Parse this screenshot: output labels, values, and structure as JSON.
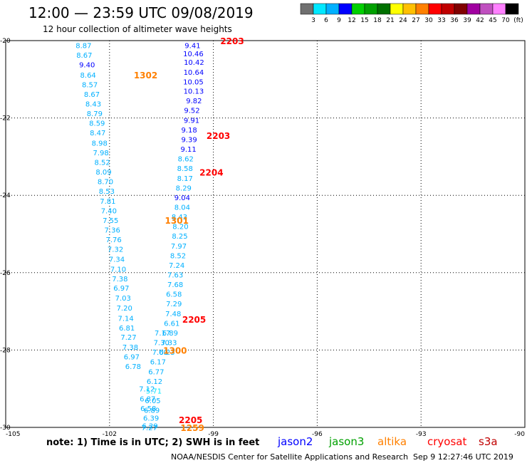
{
  "header": {
    "title": "12:00 — 23:59 UTC 09/08/2019",
    "subtitle": "12 hour collection of altimeter wave heights"
  },
  "colorbar": {
    "unit": "(ft)",
    "labels": [
      "3",
      "6",
      "9",
      "12",
      "15",
      "18",
      "21",
      "24",
      "27",
      "30",
      "33",
      "36",
      "39",
      "42",
      "45",
      "70"
    ],
    "colors": [
      "#707070",
      "#00e8ff",
      "#00b0ff",
      "#0000ff",
      "#00d000",
      "#00a000",
      "#007000",
      "#ffff00",
      "#ffc000",
      "#ff8000",
      "#ff0000",
      "#c00000",
      "#800000",
      "#a000a0",
      "#c050c0",
      "#ff80ff",
      "#000000"
    ]
  },
  "footer": {
    "note": "note: 1) Time is in UTC; 2) SWH is in feet",
    "legend": [
      {
        "label": "jason2",
        "color": "#0000ff"
      },
      {
        "label": "jason3",
        "color": "#00a000"
      },
      {
        "label": "altika",
        "color": "#ff8000"
      },
      {
        "label": "cryosat",
        "color": "#ff0000"
      },
      {
        "label": "s3a",
        "color": "#c00000"
      }
    ],
    "credit": "NOAA/NESDIS Center for Satellite Applications and Research",
    "timestamp": "Sep  9 12:27:46 UTC 2019"
  },
  "chart_data": {
    "type": "scatter",
    "xlim": [
      -105,
      -90
    ],
    "ylim": [
      -30,
      -20
    ],
    "x_ticks": [
      "-105",
      "-102",
      "-99",
      "-96",
      "-93",
      "-90"
    ],
    "y_ticks": [
      "-20",
      "-22",
      "-24",
      "-26",
      "-28",
      "-30"
    ],
    "grid": true,
    "tracks": [
      {
        "x": [
          -102.75,
          -102.73,
          -102.65,
          -102.62,
          -102.57,
          -102.51,
          -102.47,
          -102.43,
          -102.36,
          -102.34,
          -102.29,
          -102.25,
          -102.21,
          -102.17,
          -102.12,
          -102.08,
          -102.05,
          -102.02,
          -101.97,
          -101.92,
          -101.88,
          -101.83,
          -101.79,
          -101.75,
          -101.7,
          -101.66,
          -101.61,
          -101.57,
          -101.53,
          -101.5,
          -101.45,
          -101.4,
          -101.36,
          -101.32
        ],
        "y": [
          -20.12,
          -20.37,
          -20.62,
          -20.88,
          -21.13,
          -21.38,
          -21.63,
          -21.88,
          -22.13,
          -22.38,
          -22.64,
          -22.89,
          -23.14,
          -23.39,
          -23.64,
          -23.89,
          -24.14,
          -24.39,
          -24.64,
          -24.89,
          -25.14,
          -25.39,
          -25.64,
          -25.9,
          -26.15,
          -26.39,
          -26.65,
          -26.91,
          -27.17,
          -27.42,
          -27.66,
          -27.92,
          -28.17,
          -28.42
        ],
        "values": [
          "8.87",
          "8.67",
          "9.40",
          "8.64",
          "8.57",
          "8.67",
          "8.43",
          "8.79",
          "8.59",
          "8.47",
          "8.98",
          "7.98",
          "8.52",
          "8.09",
          "8.70",
          "8.53",
          "7.81",
          "7.40",
          "7.55",
          "7.36",
          "7.76",
          "7.32",
          "7.34",
          "7.10",
          "7.38",
          "6.97",
          "7.03",
          "7.20",
          "7.14",
          "6.81",
          "7.27",
          "7.38",
          "6.97",
          "6.78"
        ],
        "passes": [
          {
            "id": "1302",
            "x": -101.3,
            "y": -20.88,
            "color": "#ff8000"
          },
          {
            "id": "1301",
            "x": -100.4,
            "y": -24.64,
            "color": "#ff8000"
          }
        ]
      },
      {
        "x": [
          -99.6,
          -99.58,
          -99.56,
          -99.57,
          -99.58,
          -99.57,
          -99.56,
          -99.62,
          -99.63,
          -99.7,
          -99.7,
          -99.72,
          -99.8,
          -99.82,
          -99.82,
          -99.86,
          -99.9,
          -99.9,
          -99.98,
          -99.95,
          -99.97,
          -100.0,
          -100.02,
          -100.06,
          -100.1,
          -100.1,
          -100.14,
          -100.14,
          -100.16,
          -100.2,
          -100.25,
          -100.28,
          -100.34
        ],
        "y": [
          -20.12,
          -20.33,
          -20.55,
          -20.81,
          -21.06,
          -21.3,
          -21.55,
          -21.8,
          -22.05,
          -22.3,
          -22.55,
          -22.8,
          -23.05,
          -23.3,
          -23.55,
          -23.8,
          -24.05,
          -24.3,
          -24.55,
          -24.8,
          -25.05,
          -25.3,
          -25.55,
          -25.8,
          -26.05,
          -26.3,
          -26.55,
          -26.8,
          -27.05,
          -27.3,
          -27.55,
          -27.8,
          -28.05
        ],
        "values": [
          "9.41",
          "10.46",
          "10.42",
          "10.64",
          "10.05",
          "10.13",
          "9.82",
          "9.52",
          "9.91",
          "9.18",
          "9.39",
          "9.11",
          "8.62",
          "8.58",
          "8.17",
          "8.29",
          "9.04",
          "8.04",
          "8.43",
          "8.20",
          "8.25",
          "7.97",
          "8.52",
          "7.24",
          "7.63",
          "7.68",
          "6.58",
          "7.29",
          "7.48",
          "6.61",
          "6.89",
          "7.33",
          "6.23"
        ],
        "passes": [
          {
            "id": "2203",
            "x": -98.8,
            "y": -20.0,
            "color": "#ff0000"
          },
          {
            "id": "2203",
            "x": -99.2,
            "y": -22.45,
            "color": "#ff0000"
          },
          {
            "id": "2204",
            "x": -99.4,
            "y": -23.4,
            "color": "#ff0000"
          },
          {
            "id": "2205",
            "x": -99.9,
            "y": -27.2,
            "color": "#ff0000"
          }
        ]
      },
      {
        "x": [
          -100.47,
          -100.5,
          -100.54,
          -100.6,
          -100.65,
          -100.7,
          -100.72,
          -100.75,
          -100.78,
          -100.8,
          -100.83,
          -100.85,
          -100.88,
          -100.9,
          -100.92
        ],
        "y": [
          -27.55,
          -27.8,
          -28.05,
          -28.3,
          -28.55,
          -28.8,
          -29.05,
          -29.3,
          -29.55,
          -29.75,
          -29.95,
          -30.0,
          -29.5,
          -29.25,
          -29.0
        ],
        "values": [
          "7.17",
          "7.30",
          "7.00",
          "6.17",
          "6.77",
          "6.12",
          "5.71",
          "6.05",
          "6.89",
          "6.39",
          "6.29",
          "7.27",
          "6.58",
          "6.87",
          "7.12"
        ],
        "passes": [
          {
            "id": "1300",
            "x": -100.45,
            "y": -28.0,
            "color": "#ff8000"
          },
          {
            "id": "2205",
            "x": -100.0,
            "y": -29.8,
            "color": "#ff0000"
          },
          {
            "id": "1259",
            "x": -99.95,
            "y": -30.0,
            "color": "#ff8000"
          }
        ]
      }
    ]
  }
}
